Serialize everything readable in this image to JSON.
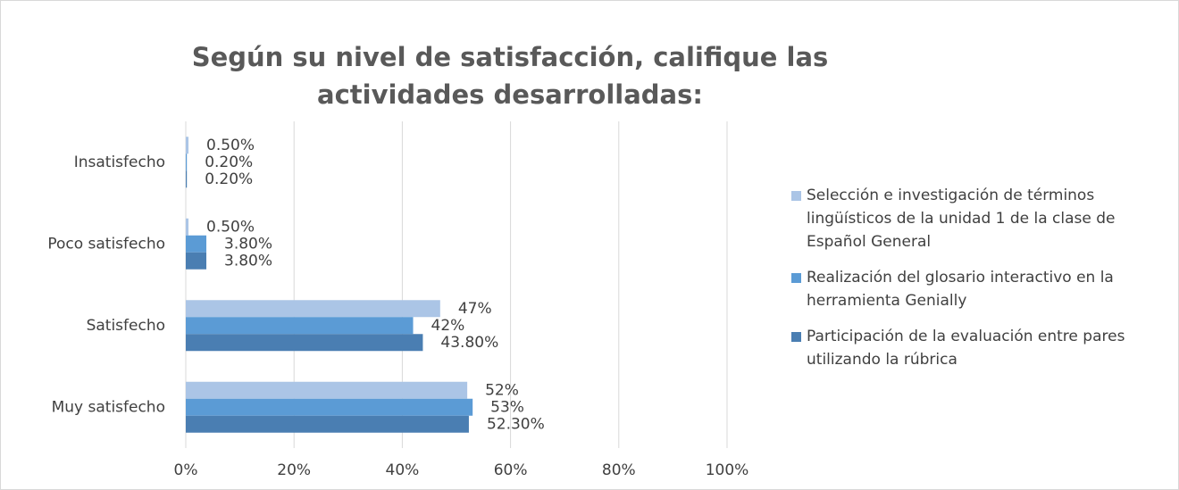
{
  "chart_data": {
    "type": "hbar",
    "title": "Según su nivel de satisfacción, califique las actividades desarrolladas:",
    "categories": [
      "Insatisfecho",
      "Poco satisfecho",
      "Satisfecho",
      "Muy satisfecho"
    ],
    "series": [
      {
        "name": "Selección e investigación de términos lingüísticos de la unidad 1 de la clase de Español General",
        "color": "#abc5e6",
        "values": [
          0.5,
          0.5,
          47,
          52
        ],
        "value_labels": [
          "0.50%",
          "0.50%",
          "47%",
          "52%"
        ]
      },
      {
        "name": "Realización del glosario interactivo en la herramienta Genially",
        "color": "#5b9bd5",
        "values": [
          0.2,
          3.8,
          42,
          53
        ],
        "value_labels": [
          "0.20%",
          "3.80%",
          "42%",
          "53%"
        ]
      },
      {
        "name": "Participación de la evaluación entre pares utilizando la rúbrica",
        "color": "#4a7eb2",
        "values": [
          0.2,
          3.8,
          43.8,
          52.3
        ],
        "value_labels": [
          "0.20%",
          "3.80%",
          "43.80%",
          "52.30%"
        ]
      }
    ],
    "xlim": [
      0,
      100
    ],
    "xticks": [
      {
        "value": 0,
        "label": "0%"
      },
      {
        "value": 20,
        "label": "20%"
      },
      {
        "value": 40,
        "label": "40%"
      },
      {
        "value": 60,
        "label": "60%"
      },
      {
        "value": 80,
        "label": "80%"
      },
      {
        "value": 100,
        "label": "100%"
      }
    ],
    "grid": true,
    "legend": "right"
  }
}
